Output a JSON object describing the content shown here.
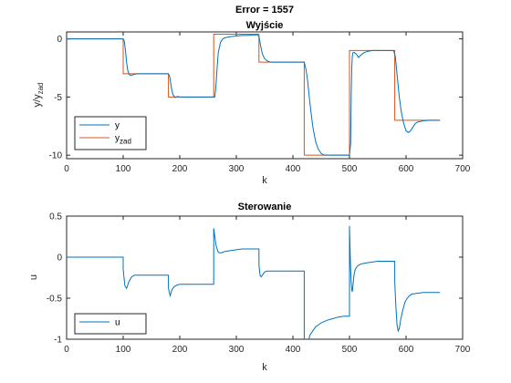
{
  "figure_title": "Error = 1557",
  "colors": {
    "y": "#0072BD",
    "yzad": "#D95319",
    "u": "#0072BD",
    "axis": "#262626"
  },
  "chart_data": [
    {
      "type": "line",
      "title": "Wyjście",
      "xlabel": "k",
      "ylabel": "y/y",
      "ylabel_sub": "zad",
      "xlim": [
        0,
        700
      ],
      "ylim": [
        -10.3,
        0.6
      ],
      "xticks": [
        0,
        100,
        200,
        300,
        400,
        500,
        600,
        700
      ],
      "yticks": [
        -10,
        -5,
        0
      ],
      "legend": "bottom-left",
      "series": [
        {
          "name": "y",
          "legend_main": "y",
          "legend_sub": "",
          "color": "#0072BD",
          "x": [
            0,
            100,
            102,
            104,
            106,
            108,
            110,
            113,
            116,
            120,
            125,
            130,
            140,
            150,
            160,
            170,
            180,
            182,
            184,
            186,
            188,
            192,
            196,
            200,
            205,
            210,
            220,
            230,
            240,
            250,
            262,
            264,
            266,
            268,
            272,
            276,
            280,
            290,
            300,
            310,
            320,
            330,
            337,
            340,
            343,
            346,
            350,
            355,
            360,
            370,
            380,
            390,
            400,
            410,
            420,
            423,
            426,
            430,
            435,
            440,
            445,
            450,
            455,
            460,
            470,
            480,
            490,
            500,
            502,
            503,
            504,
            505,
            506,
            508,
            512,
            516,
            520,
            525,
            530,
            540,
            550,
            560,
            570,
            578,
            581,
            584,
            588,
            592,
            596,
            600,
            604,
            608,
            612,
            616,
            620,
            630,
            640,
            650,
            660
          ],
          "y": [
            0,
            0,
            -0.2,
            -1.0,
            -2.0,
            -2.7,
            -3.0,
            -3.15,
            -3.1,
            -3.05,
            -3.0,
            -3.0,
            -3.0,
            -3.0,
            -3.0,
            -3.0,
            -3.0,
            -3.2,
            -3.8,
            -4.4,
            -4.8,
            -5.05,
            -4.95,
            -5.0,
            -5.0,
            -5.0,
            -5.0,
            -5.0,
            -5.0,
            -5.0,
            -5.0,
            -4.0,
            -2.5,
            -1.2,
            -0.3,
            0.0,
            0.1,
            0.2,
            0.25,
            0.3,
            0.3,
            0.35,
            0.35,
            0.2,
            -0.6,
            -1.3,
            -1.7,
            -1.9,
            -2.0,
            -2.0,
            -2.0,
            -2.0,
            -2.0,
            -2.0,
            -2.0,
            -2.6,
            -3.6,
            -5.5,
            -7.5,
            -8.8,
            -9.5,
            -9.85,
            -10.0,
            -10.0,
            -10.0,
            -10.0,
            -10.0,
            -10.0,
            -9.0,
            -5.0,
            -2.5,
            -1.5,
            -1.2,
            -1.15,
            -1.3,
            -1.6,
            -1.4,
            -1.2,
            -1.1,
            -1.0,
            -1.0,
            -1.0,
            -1.0,
            -1.0,
            -1.5,
            -3.0,
            -5.0,
            -6.4,
            -7.3,
            -7.9,
            -8.05,
            -7.9,
            -7.6,
            -7.3,
            -7.15,
            -7.05,
            -7.0,
            -7.0,
            -7.0
          ]
        },
        {
          "name": "y_zad",
          "legend_main": "y",
          "legend_sub": "zad",
          "color": "#D95319",
          "x": [
            0,
            100,
            100,
            180,
            180,
            260,
            260,
            340,
            340,
            420,
            420,
            500,
            500,
            580,
            580,
            660
          ],
          "y": [
            0,
            0,
            -3,
            -3,
            -5,
            -5,
            0.4,
            0.4,
            -2,
            -2,
            -10,
            -10,
            -1,
            -1,
            -7,
            -7
          ]
        }
      ]
    },
    {
      "type": "line",
      "title": "Sterowanie",
      "xlabel": "k",
      "ylabel": "u",
      "xlim": [
        0,
        700
      ],
      "ylim": [
        -1,
        0.5
      ],
      "xticks": [
        0,
        100,
        200,
        300,
        400,
        500,
        600,
        700
      ],
      "yticks": [
        -1,
        -0.5,
        0,
        0.5
      ],
      "ytick_labels": [
        "-1",
        "-0.5",
        "0",
        "0.5"
      ],
      "legend": "bottom-left",
      "series": [
        {
          "name": "u",
          "color": "#0072BD",
          "x": [
            0,
            100,
            100,
            103,
            106,
            110,
            115,
            120,
            125,
            130,
            140,
            150,
            160,
            170,
            180,
            180,
            183,
            186,
            190,
            195,
            200,
            210,
            220,
            230,
            240,
            250,
            260,
            260,
            262,
            264,
            266,
            268,
            272,
            276,
            280,
            290,
            300,
            310,
            320,
            330,
            340,
            340,
            342,
            344,
            346,
            350,
            355,
            360,
            370,
            380,
            390,
            400,
            410,
            420,
            420,
            425,
            430,
            440,
            450,
            460,
            470,
            480,
            490,
            500,
            500,
            501,
            502,
            503,
            504,
            505,
            506,
            508,
            510,
            514,
            518,
            522,
            530,
            540,
            550,
            560,
            570,
            580,
            580,
            582,
            584,
            586,
            588,
            590,
            594,
            598,
            602,
            606,
            610,
            620,
            630,
            640,
            650,
            660
          ],
          "y": [
            0,
            0,
            -0.15,
            -0.35,
            -0.38,
            -0.3,
            -0.24,
            -0.22,
            -0.22,
            -0.22,
            -0.22,
            -0.22,
            -0.22,
            -0.22,
            -0.22,
            -0.38,
            -0.47,
            -0.4,
            -0.36,
            -0.34,
            -0.33,
            -0.33,
            -0.33,
            -0.33,
            -0.33,
            -0.33,
            -0.33,
            0.35,
            0.25,
            0.15,
            0.1,
            0.06,
            0.05,
            0.06,
            0.07,
            0.08,
            0.09,
            0.1,
            0.1,
            0.1,
            0.1,
            -0.1,
            -0.22,
            -0.24,
            -0.22,
            -0.18,
            -0.17,
            -0.17,
            -0.17,
            -0.17,
            -0.17,
            -0.17,
            -0.17,
            -0.17,
            -1.5,
            -1.1,
            -0.95,
            -0.85,
            -0.8,
            -0.77,
            -0.75,
            -0.73,
            -0.72,
            -0.72,
            0.38,
            0.1,
            -0.15,
            -0.3,
            -0.4,
            -0.42,
            -0.35,
            -0.22,
            -0.15,
            -0.11,
            -0.09,
            -0.08,
            -0.07,
            -0.06,
            -0.05,
            -0.05,
            -0.05,
            -0.05,
            -0.3,
            -0.6,
            -0.82,
            -0.9,
            -0.87,
            -0.78,
            -0.65,
            -0.55,
            -0.5,
            -0.47,
            -0.45,
            -0.44,
            -0.43,
            -0.43,
            -0.43,
            -0.43
          ]
        }
      ]
    }
  ]
}
